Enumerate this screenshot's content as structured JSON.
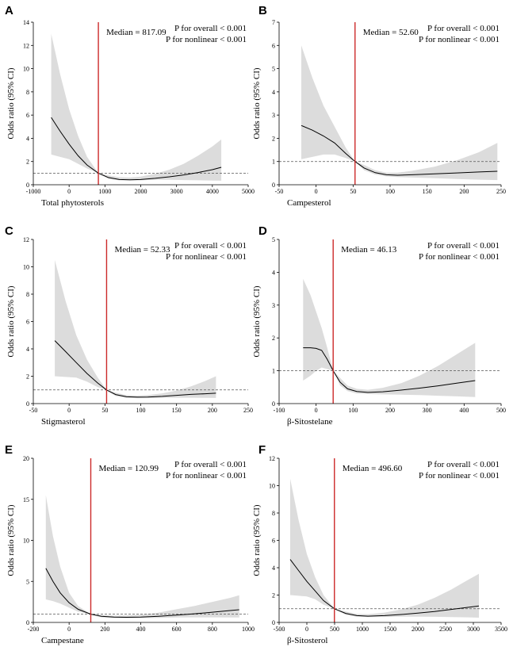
{
  "figure": {
    "background": "#ffffff"
  },
  "chart_data": [
    {
      "panel": "A",
      "type": "line",
      "xlabel": "Total phytosterols",
      "ylabel": "Odds ratio (95% CI)",
      "xlim": [
        -1000,
        5000
      ],
      "ylim": [
        0,
        14
      ],
      "xticks": [
        -1000,
        0,
        1000,
        2000,
        3000,
        4000,
        5000
      ],
      "yticks": [
        0,
        2,
        4,
        6,
        8,
        10,
        12,
        14
      ],
      "reference_y": 1,
      "median_x": 817.09,
      "median_label": "Median = 817.09",
      "p_overall": "P for overall < 0.001",
      "p_nonlinear": "P for nonlinear < 0.001",
      "x": [
        -500,
        -250,
        0,
        250,
        500,
        817,
        1100,
        1400,
        1700,
        2000,
        2400,
        2800,
        3200,
        3600,
        4000,
        4250
      ],
      "y": [
        5.8,
        4.6,
        3.5,
        2.5,
        1.7,
        1.0,
        0.62,
        0.45,
        0.42,
        0.45,
        0.55,
        0.68,
        0.85,
        1.05,
        1.3,
        1.5
      ],
      "lower": [
        2.6,
        2.4,
        2.2,
        1.8,
        1.4,
        1.0,
        0.5,
        0.38,
        0.36,
        0.38,
        0.42,
        0.42,
        0.4,
        0.38,
        0.36,
        0.35
      ],
      "upper": [
        13.0,
        9.5,
        6.5,
        4.2,
        2.4,
        1.0,
        0.8,
        0.65,
        0.62,
        0.7,
        0.95,
        1.3,
        1.8,
        2.5,
        3.3,
        3.9
      ]
    },
    {
      "panel": "B",
      "type": "line",
      "xlabel": "Campesterol",
      "ylabel": "Odds ratio (95% CI)",
      "xlim": [
        -50,
        250
      ],
      "ylim": [
        0,
        7
      ],
      "xticks": [
        -50,
        0,
        50,
        100,
        150,
        200,
        250
      ],
      "yticks": [
        0,
        1,
        2,
        3,
        4,
        5,
        6,
        7
      ],
      "reference_y": 1,
      "median_x": 52.6,
      "median_label": "Median = 52.60",
      "p_overall": "P for overall < 0.001",
      "p_nonlinear": "P for nonlinear < 0.001",
      "x": [
        -20,
        -5,
        10,
        25,
        40,
        52.6,
        65,
        80,
        95,
        110,
        130,
        160,
        190,
        220,
        245
      ],
      "y": [
        2.55,
        2.35,
        2.1,
        1.8,
        1.35,
        1.0,
        0.72,
        0.52,
        0.43,
        0.41,
        0.43,
        0.47,
        0.51,
        0.55,
        0.58
      ],
      "lower": [
        1.1,
        1.2,
        1.3,
        1.3,
        1.15,
        1.0,
        0.62,
        0.44,
        0.36,
        0.33,
        0.31,
        0.28,
        0.25,
        0.22,
        0.2
      ],
      "upper": [
        6.0,
        4.6,
        3.4,
        2.5,
        1.6,
        1.0,
        0.85,
        0.62,
        0.52,
        0.52,
        0.6,
        0.78,
        1.05,
        1.4,
        1.8
      ]
    },
    {
      "panel": "C",
      "type": "line",
      "xlabel": "Stigmasterol",
      "ylabel": "Odds ratio (95% CI)",
      "xlim": [
        -50,
        250
      ],
      "ylim": [
        0,
        12
      ],
      "xticks": [
        -50,
        0,
        50,
        100,
        150,
        200,
        250
      ],
      "yticks": [
        0,
        2,
        4,
        6,
        8,
        10,
        12
      ],
      "reference_y": 1,
      "median_x": 52.33,
      "median_label": "Median = 52.33",
      "p_overall": "P for overall < 0.001",
      "p_nonlinear": "P for nonlinear < 0.001",
      "x": [
        -20,
        -5,
        10,
        25,
        40,
        52.3,
        65,
        80,
        95,
        110,
        130,
        150,
        170,
        190,
        205
      ],
      "y": [
        4.6,
        3.8,
        3.0,
        2.2,
        1.5,
        1.0,
        0.66,
        0.5,
        0.47,
        0.48,
        0.53,
        0.6,
        0.67,
        0.72,
        0.76
      ],
      "lower": [
        2.0,
        1.95,
        1.9,
        1.6,
        1.2,
        1.0,
        0.55,
        0.42,
        0.4,
        0.4,
        0.42,
        0.43,
        0.43,
        0.42,
        0.41
      ],
      "upper": [
        10.5,
        7.5,
        5.0,
        3.2,
        1.9,
        1.0,
        0.8,
        0.62,
        0.58,
        0.62,
        0.75,
        0.95,
        1.25,
        1.65,
        2.0
      ]
    },
    {
      "panel": "D",
      "type": "line",
      "xlabel": "β-Sitostelane",
      "ylabel": "Odds ratio (95% CI)",
      "xlim": [
        -100,
        500
      ],
      "ylim": [
        0,
        5
      ],
      "xticks": [
        -100,
        0,
        100,
        200,
        300,
        400,
        500
      ],
      "yticks": [
        0,
        1,
        2,
        3,
        4,
        5
      ],
      "reference_y": 1,
      "median_x": 46.13,
      "median_label": "Median = 46.13",
      "p_overall": "P for overall < 0.001",
      "p_nonlinear": "P for nonlinear < 0.001",
      "x": [
        -35,
        -15,
        0,
        15,
        30,
        46.1,
        65,
        85,
        110,
        140,
        180,
        230,
        280,
        330,
        380,
        430
      ],
      "y": [
        1.7,
        1.7,
        1.68,
        1.62,
        1.35,
        1.0,
        0.65,
        0.45,
        0.37,
        0.34,
        0.36,
        0.41,
        0.47,
        0.54,
        0.62,
        0.7
      ],
      "lower": [
        0.7,
        0.85,
        1.0,
        1.1,
        1.05,
        1.0,
        0.55,
        0.38,
        0.31,
        0.29,
        0.28,
        0.27,
        0.26,
        0.24,
        0.22,
        0.2
      ],
      "upper": [
        3.8,
        3.3,
        2.8,
        2.3,
        1.7,
        1.0,
        0.78,
        0.55,
        0.45,
        0.42,
        0.48,
        0.62,
        0.85,
        1.15,
        1.5,
        1.85
      ]
    },
    {
      "panel": "E",
      "type": "line",
      "xlabel": "Campestane",
      "ylabel": "Odds ratio (95% CI)",
      "xlim": [
        -200,
        1000
      ],
      "ylim": [
        0,
        20
      ],
      "xticks": [
        -200,
        0,
        200,
        400,
        600,
        800,
        1000
      ],
      "yticks": [
        0,
        5,
        10,
        15,
        20
      ],
      "reference_y": 1,
      "median_x": 120.99,
      "median_label": "Median = 120.99",
      "p_overall": "P for overall < 0.001",
      "p_nonlinear": "P for nonlinear < 0.001",
      "x": [
        -130,
        -90,
        -50,
        0,
        50,
        121,
        180,
        250,
        320,
        400,
        500,
        600,
        700,
        800,
        900,
        950
      ],
      "y": [
        6.6,
        5.0,
        3.6,
        2.4,
        1.6,
        1.0,
        0.75,
        0.65,
        0.63,
        0.66,
        0.75,
        0.9,
        1.05,
        1.25,
        1.45,
        1.55
      ],
      "lower": [
        2.8,
        2.6,
        2.3,
        1.8,
        1.3,
        1.0,
        0.62,
        0.52,
        0.5,
        0.52,
        0.55,
        0.6,
        0.62,
        0.62,
        0.6,
        0.6
      ],
      "upper": [
        15.5,
        10.5,
        6.8,
        3.6,
        2.0,
        1.0,
        0.9,
        0.82,
        0.85,
        0.95,
        1.2,
        1.6,
        2.0,
        2.5,
        3.0,
        3.3
      ]
    },
    {
      "panel": "F",
      "type": "line",
      "xlabel": "β-Sitosterol",
      "ylabel": "Odds ratio (95% CI)",
      "xlim": [
        -500,
        3500
      ],
      "ylim": [
        0,
        12
      ],
      "xticks": [
        -500,
        0,
        500,
        1000,
        1500,
        2000,
        2500,
        3000,
        3500
      ],
      "yticks": [
        0,
        2,
        4,
        6,
        8,
        10,
        12
      ],
      "reference_y": 1,
      "median_x": 496.6,
      "median_label": "Median = 496.60",
      "p_overall": "P for overall < 0.001",
      "p_nonlinear": "P for nonlinear < 0.001",
      "x": [
        -300,
        -150,
        0,
        150,
        300,
        496.6,
        700,
        900,
        1100,
        1400,
        1700,
        2000,
        2300,
        2600,
        2900,
        3100
      ],
      "y": [
        4.6,
        3.8,
        3.0,
        2.3,
        1.6,
        1.0,
        0.66,
        0.5,
        0.46,
        0.5,
        0.58,
        0.68,
        0.8,
        0.95,
        1.1,
        1.2
      ],
      "lower": [
        2.0,
        1.95,
        1.9,
        1.7,
        1.3,
        1.0,
        0.55,
        0.42,
        0.39,
        0.4,
        0.42,
        0.42,
        0.41,
        0.39,
        0.37,
        0.35
      ],
      "upper": [
        10.5,
        7.5,
        5.0,
        3.3,
        2.0,
        1.0,
        0.8,
        0.62,
        0.6,
        0.72,
        0.95,
        1.3,
        1.8,
        2.4,
        3.1,
        3.55
      ]
    }
  ],
  "colors": {
    "median_line": "#cc2a2a",
    "ci_band": "#dcdcdc",
    "curve": "#000000",
    "reference_line": "#555555",
    "axis": "#000000"
  }
}
